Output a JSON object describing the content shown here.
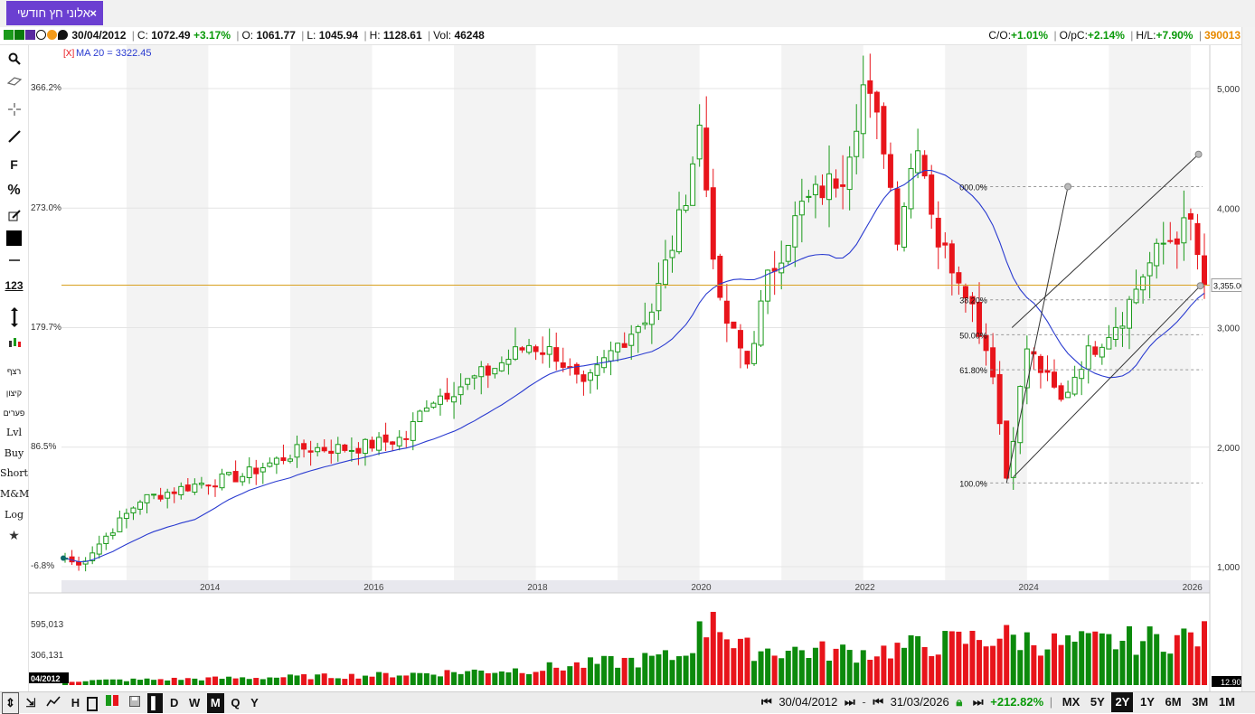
{
  "tab": {
    "title": "אלוני חץ חודשי",
    "close": "×"
  },
  "info": {
    "date": "30/04/2012",
    "close_label": "C:",
    "close": "1072.49",
    "change": "+3.17%",
    "open_label": "O:",
    "open": "1061.77",
    "low_label": "L:",
    "low": "1045.94",
    "high_label": "H:",
    "high": "1128.61",
    "vol_label": "Vol:",
    "vol": "46248",
    "co_label": "C/O:",
    "co": "+1.01%",
    "opc_label": "O/pC:",
    "opc": "+2.14%",
    "hl_label": "H/L:",
    "hl": "+7.90%",
    "symbol": "390013"
  },
  "left_tools": {
    "buttons": [
      "F",
      "%",
      "123",
      "רצף",
      "קיצון",
      "פערים",
      "Lvl",
      "Buy",
      "Short",
      "M&M",
      "Log"
    ]
  },
  "chart_data": {
    "type": "candlestick",
    "ma_label": "MA 20 = 3322.45",
    "ma_marker": "[X]",
    "y_right_ticks": [
      "1,000",
      "2,000",
      "3,000",
      "4,000",
      "5,000"
    ],
    "y_left_ticks": [
      "-6.8%",
      "86.5%",
      "179.7%",
      "273.0%",
      "366.2%"
    ],
    "x_ticks": [
      "2014",
      "2016",
      "2018",
      "2020",
      "2022",
      "2024",
      "2026"
    ],
    "last_price_label": "3,355.00",
    "fib_levels": [
      "000.0%",
      "38.20%",
      "50.00%",
      "61.80%",
      "100.0%"
    ],
    "volume_ticks": [
      "595,013",
      "306,131"
    ],
    "volume_corner_label": "12.90",
    "date_corner_label": "04/2012",
    "price_anchors": [
      [
        "2012-04",
        1072
      ],
      [
        "2012-06",
        1010
      ],
      [
        "2013-03",
        1560
      ],
      [
        "2013-12",
        1700
      ],
      [
        "2014-06",
        1760
      ],
      [
        "2015-03",
        1990
      ],
      [
        "2015-10",
        1990
      ],
      [
        "2016-06",
        2080
      ],
      [
        "2016-09",
        2380
      ],
      [
        "2017-01",
        2490
      ],
      [
        "2017-06",
        2630
      ],
      [
        "2017-12",
        2860
      ],
      [
        "2018-04",
        2780
      ],
      [
        "2018-08",
        2480
      ],
      [
        "2019-01",
        2860
      ],
      [
        "2019-06",
        3150
      ],
      [
        "2019-10",
        3880
      ],
      [
        "2020-01",
        4670
      ],
      [
        "2020-04",
        3160
      ],
      [
        "2020-08",
        2700
      ],
      [
        "2020-11",
        3400
      ],
      [
        "2021-04",
        4010
      ],
      [
        "2021-10",
        4300
      ],
      [
        "2022-01",
        5020
      ],
      [
        "2022-04",
        4550
      ],
      [
        "2022-06",
        3800
      ],
      [
        "2022-09",
        4600
      ],
      [
        "2022-12",
        3720
      ],
      [
        "2023-04",
        3350
      ],
      [
        "2023-08",
        2650
      ],
      [
        "2023-10",
        1750
      ],
      [
        "2024-01",
        2830
      ],
      [
        "2024-06",
        2380
      ],
      [
        "2024-09",
        2720
      ],
      [
        "2025-03",
        3100
      ],
      [
        "2025-06",
        3450
      ],
      [
        "2025-09",
        3700
      ],
      [
        "2026-01",
        3870
      ],
      [
        "2026-03",
        3355
      ]
    ],
    "volume_peaks": [
      [
        "2012-04",
        0.05
      ],
      [
        "2014-01",
        0.08
      ],
      [
        "2016-01",
        0.12
      ],
      [
        "2018-01",
        0.2
      ],
      [
        "2019-10",
        0.35
      ],
      [
        "2020-02",
        0.72
      ],
      [
        "2020-03",
        1.0
      ],
      [
        "2020-06",
        0.45
      ],
      [
        "2022-01",
        0.4
      ],
      [
        "2023-09",
        0.6
      ],
      [
        "2024-06",
        0.5
      ],
      [
        "2025-05",
        0.55
      ],
      [
        "2026-02",
        0.6
      ]
    ]
  },
  "bottom": {
    "timeframes": [
      "D",
      "W",
      "M",
      "Q",
      "Y"
    ],
    "active_timeframe": "M",
    "start_date": "30/04/2012",
    "end_date": "31/03/2026",
    "range_change": "+212.82%",
    "ranges": [
      "MX",
      "5Y",
      "2Y",
      "1Y",
      "6M",
      "3M",
      "1M"
    ],
    "active_range": "2Y",
    "tool_labels": [
      "H"
    ]
  },
  "colors": {
    "up": "#1a9a1a",
    "down": "#e8141b",
    "ma": "#2a3bd0",
    "accent": "#6b3fd1",
    "price_line": "#d8a020"
  }
}
